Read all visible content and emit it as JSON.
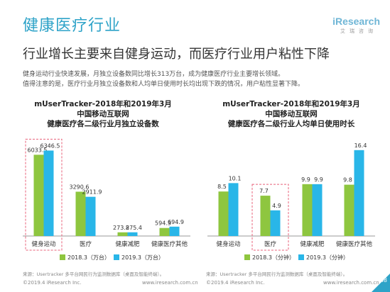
{
  "page": {
    "title": "健康医疗行业",
    "headline": "行业增长主要来自健身运动，而医疗行业用户粘性下降",
    "note_lines": [
      "健身运动行业快速发展，月独立设备数同比增长313万台，成为健康医疗行业主要增长领域。",
      "值得注意的是，医疗行业月独立设备数和人均单日使用时长均出现下跌的情况，用户粘性显著下降。"
    ]
  },
  "logo": {
    "main": "iResearch",
    "sub": "艾瑞咨询"
  },
  "colors": {
    "accent": "#2ea3c8",
    "series_2018": "#8ec63f",
    "series_2019": "#29b6e8",
    "highlight_box": "#e8607a"
  },
  "chart_data": [
    {
      "type": "bar",
      "title_lines": [
        "mUserTracker-2018年和2019年3月",
        "中国移动互联网",
        "健康医疗各二级行业月独立设备数"
      ],
      "categories": [
        "健身运动",
        "医疗",
        "健康减肥",
        "健康医疗其他"
      ],
      "series": [
        {
          "name": "2018.3（万台）",
          "values": [
            6033.5,
            3290.6,
            273.8,
            594.3
          ]
        },
        {
          "name": "2019.3（万台）",
          "values": [
            6346.5,
            2911.9,
            275.4,
            694.9
          ]
        }
      ],
      "highlight_category": "健身运动",
      "ylim": [
        0,
        7000
      ],
      "xlabel": "",
      "ylabel": "",
      "grid": false,
      "legend": "bottom",
      "source": "来源：Usertracker 多平台网民行为监测数据库（桌面及智能终端）。"
    },
    {
      "type": "bar",
      "title_lines": [
        "mUserTracker-2018年和2019年3月",
        "中国移动互联网",
        "健康医疗各二级行业人均单日使用时长"
      ],
      "categories": [
        "健身运动",
        "医疗",
        "健康减肥",
        "健康医疗其他"
      ],
      "series": [
        {
          "name": "2018.3（分钟）",
          "values": [
            8.5,
            7.7,
            9.9,
            9.8
          ]
        },
        {
          "name": "2019.3（分钟）",
          "values": [
            10.1,
            4.9,
            9.9,
            16.4
          ]
        }
      ],
      "highlight_category": "医疗",
      "ylim": [
        0,
        18
      ],
      "xlabel": "",
      "ylabel": "",
      "grid": false,
      "legend": "bottom",
      "source": "来源：Usertracker 多平台网民行为监测数据库（桌面及智能终端）。"
    }
  ],
  "footer": {
    "left_copyright": "©2019.4 iResearch Inc.",
    "left_url": "www.iresearch.com.cn",
    "right_copyright": "©2019.4 iResearch Inc.",
    "right_url": "www.iresearch.com.cn",
    "page_number": "48"
  }
}
